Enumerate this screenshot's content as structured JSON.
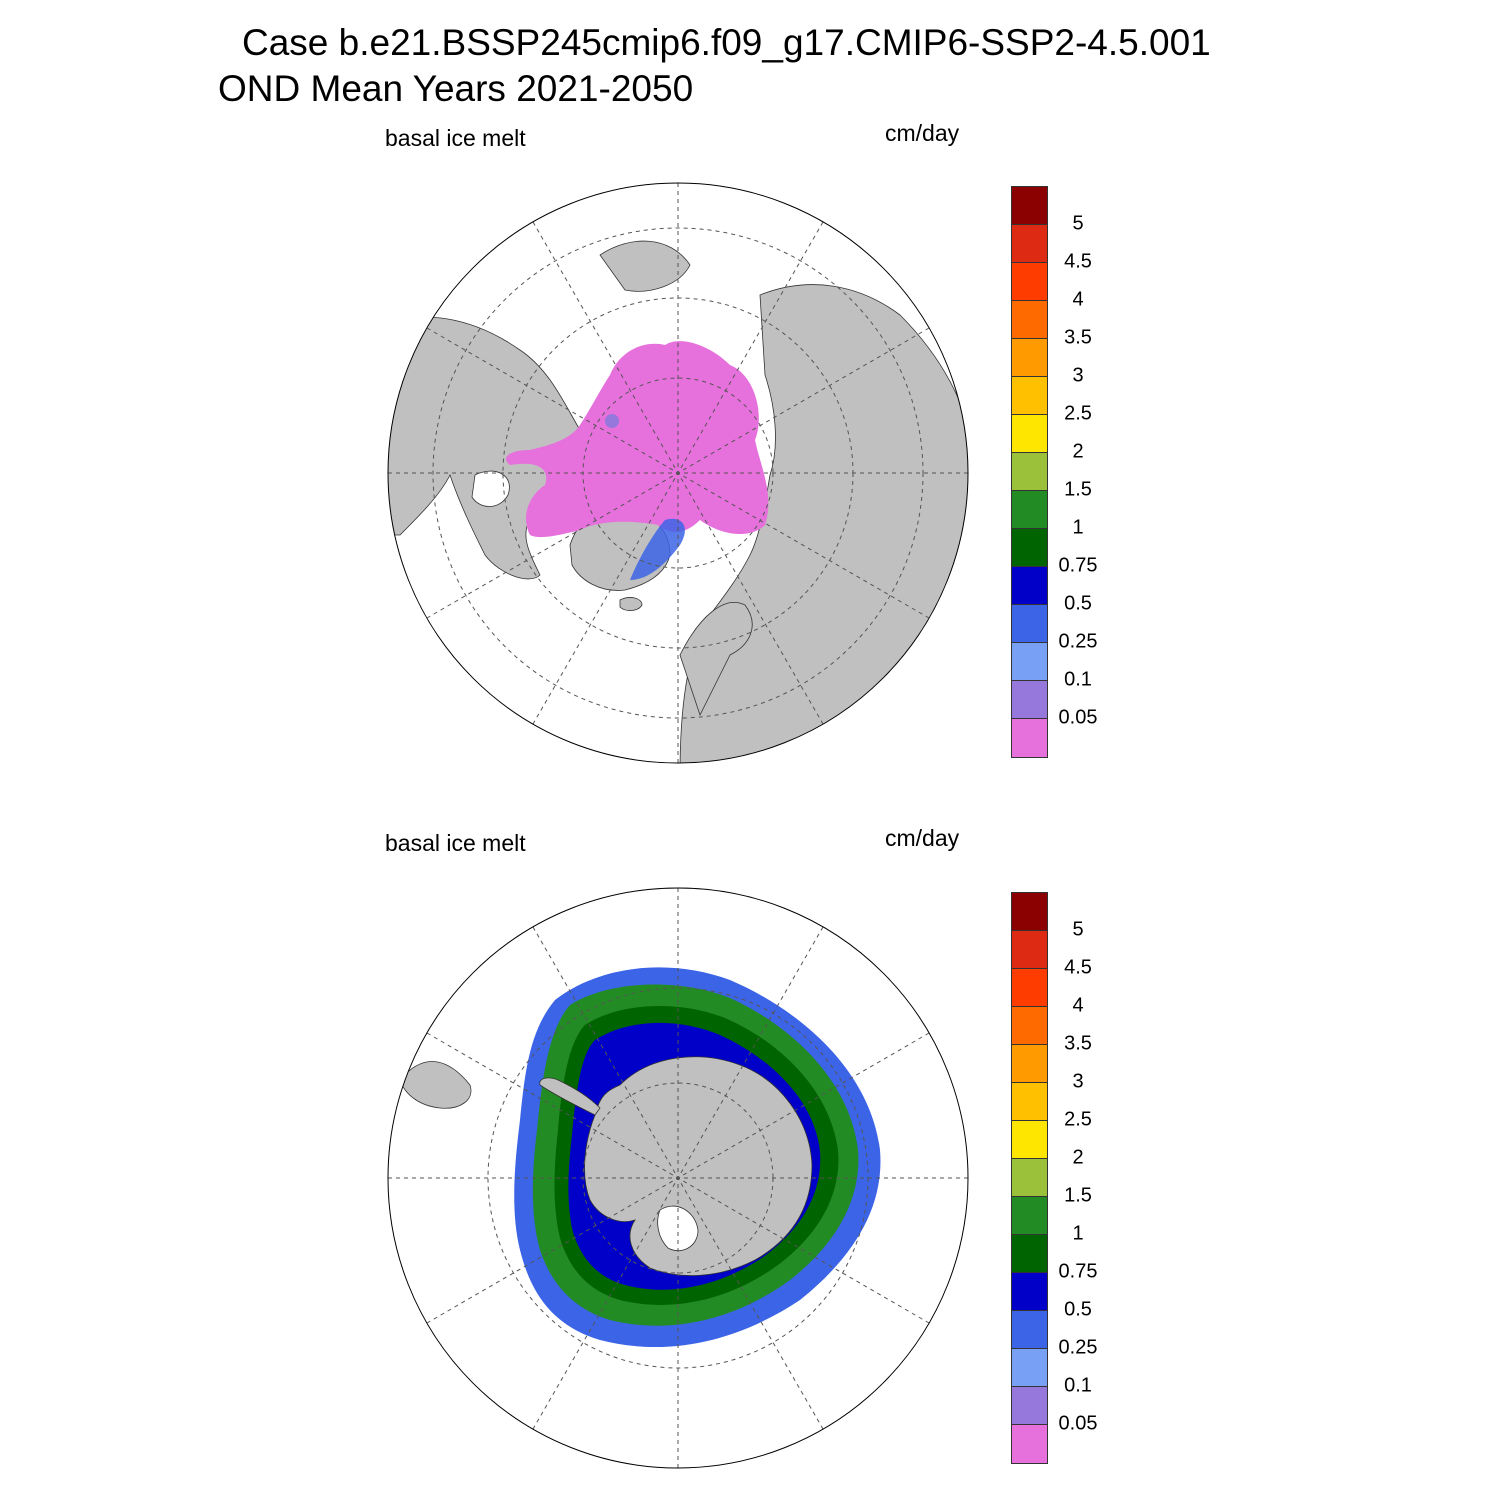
{
  "title_line1": "Case b.e21.BSSP245cmip6.f09_g17.CMIP6-SSP2-4.5.001",
  "title_line2": "OND Mean   Years 2021-2050",
  "panels": [
    {
      "variable": "basal ice melt",
      "units": "cm/day",
      "hemisphere": "north"
    },
    {
      "variable": "basal ice melt",
      "units": "cm/day",
      "hemisphere": "south"
    }
  ],
  "colorbar": {
    "levels": [
      "5",
      "4.5",
      "4",
      "3.5",
      "3",
      "2.5",
      "2",
      "1.5",
      "1",
      "0.75",
      "0.5",
      "0.25",
      "0.1",
      "0.05"
    ],
    "colors": [
      "#8b0000",
      "#dd2a12",
      "#ff3c00",
      "#ff6a00",
      "#ff9a00",
      "#ffc000",
      "#ffe600",
      "#9bc03a",
      "#238b23",
      "#006400",
      "#0000c8",
      "#3c64e6",
      "#78a0f5",
      "#9678dc",
      "#e670dc"
    ]
  },
  "map_colors": {
    "land": "#c0c0c0",
    "ocean": "#ffffff",
    "grid": "#555555"
  }
}
